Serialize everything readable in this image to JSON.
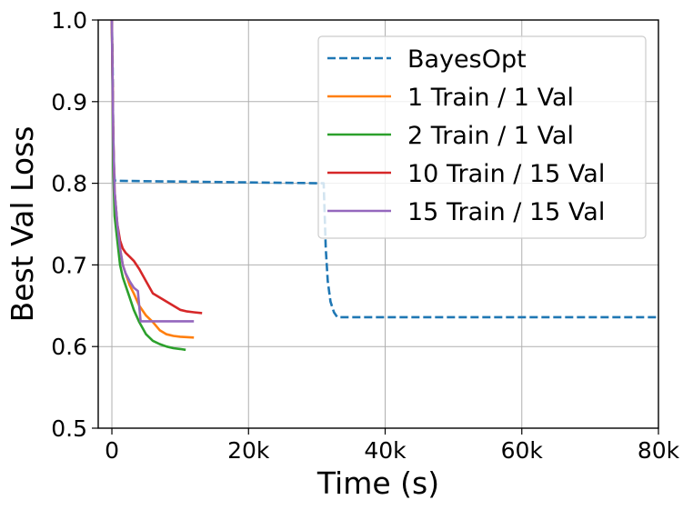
{
  "chart_data": {
    "type": "line",
    "title": "",
    "xlabel": "Time (s)",
    "ylabel": "Best Val Loss",
    "xlim": [
      -2000,
      80000
    ],
    "ylim": [
      0.5,
      1.0
    ],
    "xticks": [
      0,
      20000,
      40000,
      60000,
      80000
    ],
    "xtick_labels": [
      "0",
      "20k",
      "40k",
      "60k",
      "80k"
    ],
    "yticks": [
      0.5,
      0.6,
      0.7,
      0.8,
      0.9,
      1.0
    ],
    "ytick_labels": [
      "0.5",
      "0.6",
      "0.7",
      "0.8",
      "0.9",
      "1.0"
    ],
    "grid": true,
    "legend_position": "top-right",
    "series": [
      {
        "name": "BayesOpt",
        "color": "#1f77b4",
        "dash": true,
        "x": [
          0,
          100,
          200,
          300,
          400,
          500,
          31000,
          31300,
          31600,
          32000,
          32500,
          33000,
          80000
        ],
        "y": [
          1.0,
          0.95,
          0.85,
          0.82,
          0.805,
          0.803,
          0.8,
          0.72,
          0.68,
          0.655,
          0.642,
          0.636,
          0.636
        ]
      },
      {
        "name": "1 Train / 1 Val",
        "color": "#ff7f0e",
        "dash": false,
        "x": [
          0,
          200,
          400,
          800,
          1200,
          1600,
          2000,
          2600,
          3200,
          4000,
          5000,
          6000,
          7000,
          8000,
          9000,
          10000,
          12000
        ],
        "y": [
          1.0,
          0.85,
          0.78,
          0.74,
          0.72,
          0.7,
          0.69,
          0.675,
          0.665,
          0.65,
          0.638,
          0.63,
          0.62,
          0.615,
          0.613,
          0.612,
          0.611
        ]
      },
      {
        "name": "2 Train / 1 Val",
        "color": "#2ca02c",
        "dash": false,
        "x": [
          0,
          200,
          400,
          800,
          1200,
          1600,
          2000,
          2600,
          3200,
          4000,
          5000,
          6000,
          7000,
          8000,
          9000,
          10000,
          10800
        ],
        "y": [
          1.0,
          0.82,
          0.76,
          0.73,
          0.7,
          0.685,
          0.675,
          0.66,
          0.645,
          0.63,
          0.615,
          0.607,
          0.603,
          0.6,
          0.598,
          0.597,
          0.596
        ]
      },
      {
        "name": "10 Train / 15 Val",
        "color": "#d62728",
        "dash": false,
        "x": [
          0,
          200,
          400,
          800,
          1200,
          1600,
          2000,
          2600,
          3200,
          4000,
          5000,
          6000,
          7000,
          8000,
          9000,
          10000,
          11000,
          12000,
          13200
        ],
        "y": [
          1.0,
          0.86,
          0.79,
          0.75,
          0.73,
          0.72,
          0.715,
          0.71,
          0.705,
          0.695,
          0.68,
          0.665,
          0.66,
          0.655,
          0.65,
          0.645,
          0.643,
          0.642,
          0.641
        ]
      },
      {
        "name": "15 Train / 15 Val",
        "color": "#9467bd",
        "dash": false,
        "x": [
          0,
          200,
          400,
          800,
          1200,
          1600,
          2000,
          2600,
          3200,
          3800,
          4200,
          6000,
          8000,
          10000,
          12000
        ],
        "y": [
          1.0,
          0.86,
          0.79,
          0.75,
          0.72,
          0.7,
          0.69,
          0.68,
          0.672,
          0.668,
          0.631,
          0.631,
          0.631,
          0.631,
          0.631
        ]
      }
    ]
  }
}
